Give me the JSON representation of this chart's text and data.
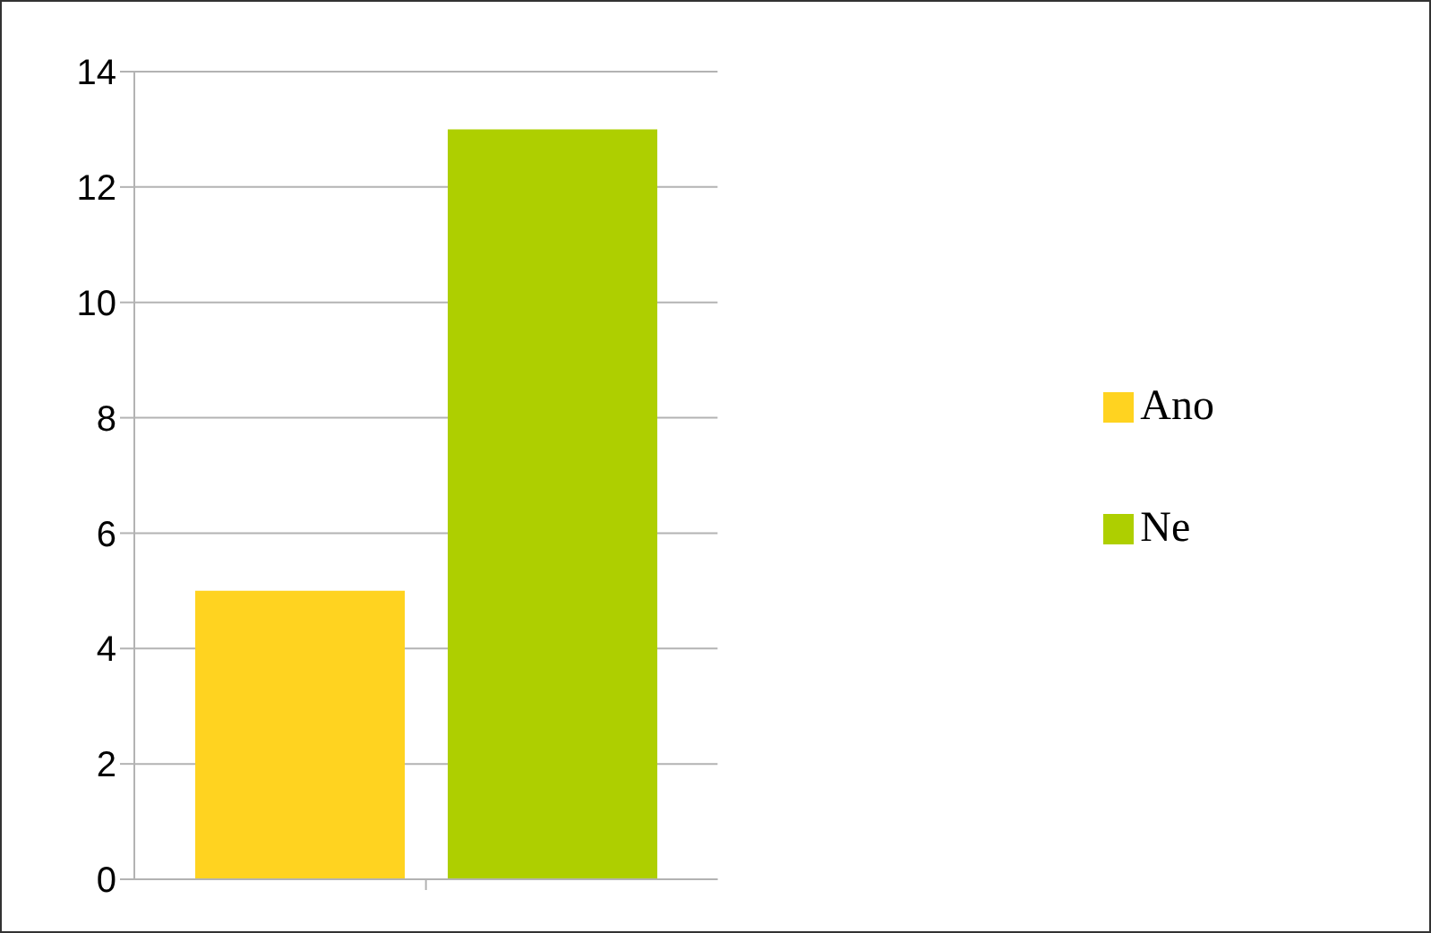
{
  "chart_data": {
    "type": "bar",
    "categories": [
      null
    ],
    "series": [
      {
        "name": "Ano",
        "color": "#ffd320",
        "values": [
          5
        ]
      },
      {
        "name": "Ne",
        "color": "#aecf00",
        "values": [
          13
        ]
      }
    ],
    "ylim": [
      0,
      14
    ],
    "yticks": [
      0,
      2,
      4,
      6,
      8,
      10,
      12,
      14
    ],
    "grid": "y",
    "legend": "right"
  }
}
